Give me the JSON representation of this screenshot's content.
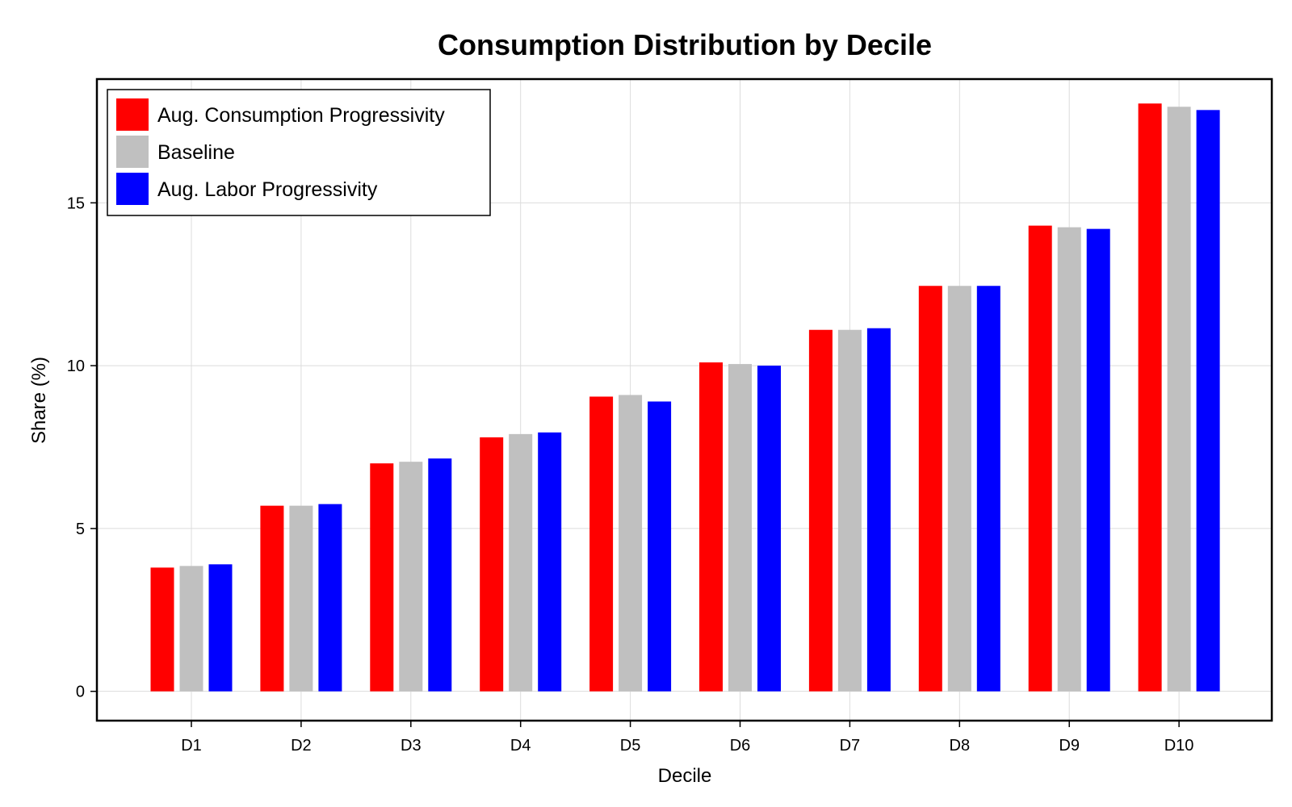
{
  "chart_data": {
    "type": "bar",
    "title": "Consumption Distribution by Decile",
    "xlabel": "Decile",
    "ylabel": "Share (%)",
    "categories": [
      "D1",
      "D2",
      "D3",
      "D4",
      "D5",
      "D6",
      "D7",
      "D8",
      "D9",
      "D10"
    ],
    "series": [
      {
        "name": "Aug. Consumption Progressivity",
        "color": "#ff0000",
        "values": [
          3.8,
          5.7,
          7.0,
          7.8,
          9.05,
          10.1,
          11.1,
          12.45,
          14.3,
          18.05
        ]
      },
      {
        "name": "Baseline",
        "color": "#c0c0c0",
        "values": [
          3.85,
          5.7,
          7.05,
          7.9,
          9.1,
          10.05,
          11.1,
          12.45,
          14.25,
          17.95
        ]
      },
      {
        "name": "Aug. Labor Progressivity",
        "color": "#0000ff",
        "values": [
          3.9,
          5.75,
          7.15,
          7.95,
          8.9,
          10.0,
          11.15,
          12.45,
          14.2,
          17.85
        ]
      }
    ],
    "ylim": [
      -0.9,
      18.8
    ],
    "yticks": [
      0,
      5,
      10,
      15
    ],
    "grid": true,
    "legend_position": "top-left"
  }
}
